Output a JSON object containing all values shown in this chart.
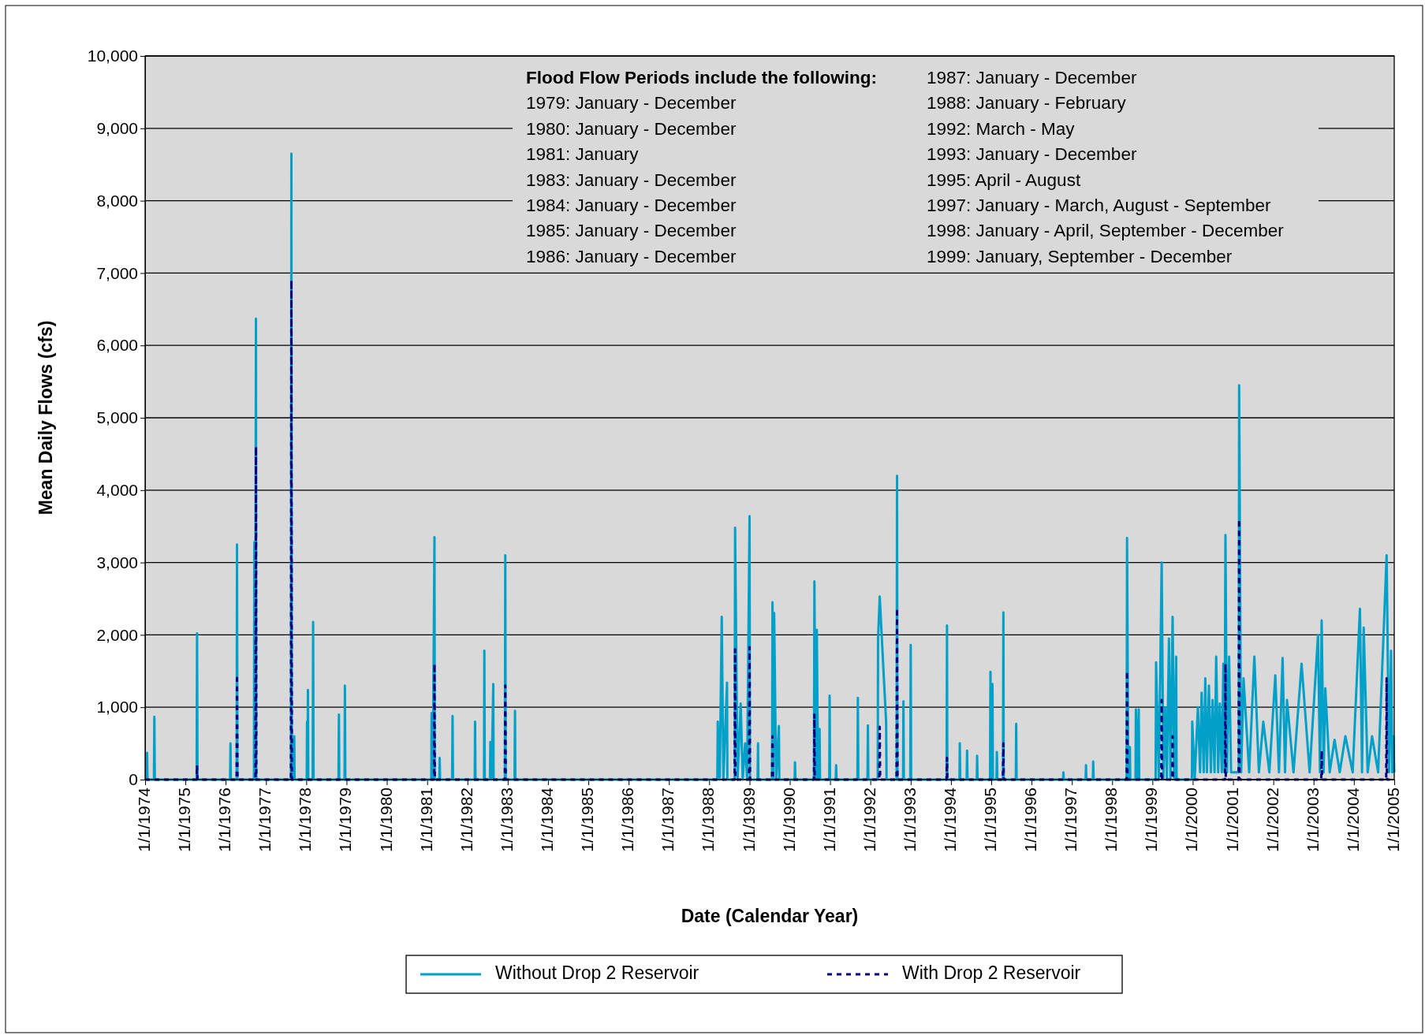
{
  "chart_data": {
    "type": "line",
    "xlabel": "Date (Calendar Year)",
    "ylabel": "Mean Daily Flows (cfs)",
    "xlim": [
      "1974-01-01",
      "2005-01-01"
    ],
    "xticks": [
      {
        "value": "1974-01-01",
        "label": "1/1/1974"
      },
      {
        "value": "1975-01-01",
        "label": "1/1/1975"
      },
      {
        "value": "1976-01-01",
        "label": "1/1/1976"
      },
      {
        "value": "1977-01-01",
        "label": "1/1/1977"
      },
      {
        "value": "1978-01-01",
        "label": "1/1/1978"
      },
      {
        "value": "1979-01-01",
        "label": "1/1/1979"
      },
      {
        "value": "1980-01-01",
        "label": "1/1/1980"
      },
      {
        "value": "1981-01-01",
        "label": "1/1/1981"
      },
      {
        "value": "1982-01-01",
        "label": "1/1/1982"
      },
      {
        "value": "1983-01-01",
        "label": "1/1/1983"
      },
      {
        "value": "1984-01-01",
        "label": "1/1/1984"
      },
      {
        "value": "1985-01-01",
        "label": "1/1/1985"
      },
      {
        "value": "1986-01-01",
        "label": "1/1/1986"
      },
      {
        "value": "1987-01-01",
        "label": "1/1/1987"
      },
      {
        "value": "1988-01-01",
        "label": "1/1/1988"
      },
      {
        "value": "1989-01-01",
        "label": "1/1/1989"
      },
      {
        "value": "1990-01-01",
        "label": "1/1/1990"
      },
      {
        "value": "1991-01-01",
        "label": "1/1/1991"
      },
      {
        "value": "1992-01-01",
        "label": "1/1/1992"
      },
      {
        "value": "1993-01-01",
        "label": "1/1/1993"
      },
      {
        "value": "1994-01-01",
        "label": "1/1/1994"
      },
      {
        "value": "1995-01-01",
        "label": "1/1/1995"
      },
      {
        "value": "1996-01-01",
        "label": "1/1/1996"
      },
      {
        "value": "1997-01-01",
        "label": "1/1/1997"
      },
      {
        "value": "1998-01-01",
        "label": "1/1/1998"
      },
      {
        "value": "1999-01-01",
        "label": "1/1/1999"
      },
      {
        "value": "2000-01-01",
        "label": "1/1/2000"
      },
      {
        "value": "2001-01-01",
        "label": "1/1/2001"
      },
      {
        "value": "2002-01-01",
        "label": "1/1/2002"
      },
      {
        "value": "2003-01-01",
        "label": "1/1/2003"
      },
      {
        "value": "2004-01-01",
        "label": "1/1/2004"
      },
      {
        "value": "2005-01-01",
        "label": "1/1/2005"
      }
    ],
    "ylim": [
      0,
      10000
    ],
    "yticks": [
      0,
      {
        "value": 1000,
        "label": "1,000"
      },
      {
        "value": 2000,
        "label": "2,000"
      },
      {
        "value": 3000,
        "label": "3,000"
      },
      {
        "value": 4000,
        "label": "4,000"
      },
      {
        "value": 5000,
        "label": "5,000"
      },
      {
        "value": 6000,
        "label": "6,000"
      },
      {
        "value": 7000,
        "label": "7,000"
      },
      {
        "value": 8000,
        "label": "8,000"
      },
      {
        "value": 9000,
        "label": "9,000"
      },
      {
        "value": 10000,
        "label": "10,000"
      }
    ],
    "grid": "y",
    "legend": "bottom",
    "annotations": [
      "Flood Flow Periods include the following:",
      "1979: January - December",
      "1980: January - December",
      "1981: January",
      "1983: January - December",
      "1984: January - December",
      "1985: January - December",
      "1986: January - December",
      "1987: January - December",
      "1988: January - February",
      "1992: March - May",
      "1993: January - December",
      "1995: April - August",
      "1997: January - March, August - September",
      "1998: January - April, September - December",
      "1999: January, September - December"
    ],
    "series": [
      {
        "name": "Without Drop 2 Reservoir",
        "color": "#00a0c8",
        "line_style": "solid",
        "x": [
          "1974-01-01",
          "1974-01-16",
          "1974-01-19",
          "1974-01-23",
          "1974-03-22",
          "1974-03-26",
          "1974-03-30",
          "1975-04-13",
          "1975-04-17",
          "1975-04-21",
          "1976-02-10",
          "1976-02-14",
          "1976-02-17",
          "1976-04-10",
          "1976-04-13",
          "1976-04-17",
          "1976-09-14",
          "1976-09-17",
          "1976-09-24",
          "1976-10-02",
          "1976-10-05",
          "1977-08-15",
          "1977-08-19",
          "1977-08-23",
          "1977-09-10",
          "1977-09-14",
          "1977-09-17",
          "1978-01-05",
          "1978-01-08",
          "1978-01-12",
          "1978-01-16",
          "1978-01-19",
          "1978-02-28",
          "1978-03-04",
          "1978-03-08",
          "1978-10-20",
          "1978-10-24",
          "1978-10-27",
          "1978-12-14",
          "1978-12-17",
          "1978-12-21",
          "1981-02-07",
          "1981-02-10",
          "1981-02-21",
          "1981-03-08",
          "1981-03-11",
          "1981-04-21",
          "1981-04-24",
          "1981-04-28",
          "1981-08-15",
          "1981-08-19",
          "1981-08-23",
          "1982-03-08",
          "1982-03-11",
          "1982-03-15",
          "1982-05-31",
          "1982-06-03",
          "1982-06-07",
          "1982-07-24",
          "1982-07-28",
          "1982-08-08",
          "1982-08-23",
          "1982-08-26",
          "1982-12-06",
          "1982-12-10",
          "1982-12-14",
          "1983-03-04",
          "1983-03-08",
          "1983-03-11",
          "1988-03-15",
          "1988-03-19",
          "1988-04-06",
          "1988-04-24",
          "1988-05-09",
          "1988-06-11",
          "1988-06-14",
          "1988-08-19",
          "1988-08-23",
          "1988-09-14",
          "1988-10-13",
          "1988-10-31",
          "1988-11-22",
          "1988-12-10",
          "1989-01-01",
          "1989-01-05",
          "1989-03-15",
          "1989-03-19",
          "1989-03-22",
          "1989-07-24",
          "1989-07-28",
          "1989-08-04",
          "1989-08-12",
          "1989-08-30",
          "1989-09-24",
          "1989-09-28",
          "1990-02-14",
          "1990-02-17",
          "1990-02-21",
          "1990-08-08",
          "1990-08-12",
          "1990-08-23",
          "1990-09-03",
          "1990-09-14",
          "1990-09-28",
          "1990-10-02",
          "1990-12-25",
          "1990-12-28",
          "1991-01-01",
          "1991-02-21",
          "1991-02-25",
          "1991-02-28",
          "1991-09-06",
          "1991-09-10",
          "1991-09-14",
          "1991-12-06",
          "1991-12-10",
          "1991-12-14",
          "1992-03-08",
          "1992-03-11",
          "1992-03-26",
          "1992-05-23",
          "1992-05-27",
          "1992-08-26",
          "1992-08-30",
          "1992-09-03",
          "1992-10-24",
          "1992-10-27",
          "1992-10-31",
          "1992-12-28",
          "1993-01-01",
          "1993-01-05",
          "1993-11-22",
          "1993-11-26",
          "1993-11-29",
          "1994-03-19",
          "1994-03-22",
          "1994-03-26",
          "1994-05-23",
          "1994-05-27",
          "1994-05-31",
          "1994-08-23",
          "1994-08-26",
          "1994-08-30",
          "1994-12-21",
          "1994-12-25",
          "1995-01-01",
          "1995-01-12",
          "1995-01-16",
          "1995-02-17",
          "1995-02-21",
          "1995-02-25",
          "1995-04-17",
          "1995-04-21",
          "1995-04-24",
          "1995-08-12",
          "1995-08-15",
          "1995-08-19",
          "1996-10-13",
          "1996-10-16",
          "1996-10-20",
          "1997-05-05",
          "1997-05-09",
          "1997-05-12",
          "1997-07-10",
          "1997-07-13",
          "1997-07-17",
          "1998-05-12",
          "1998-05-16",
          "1998-05-27",
          "1998-06-11",
          "1998-06-14",
          "1998-08-01",
          "1998-08-04",
          "1998-08-15",
          "1998-08-30",
          "1998-09-03",
          "1999-01-30",
          "1999-02-03",
          "1999-02-28",
          "1999-03-26",
          "1999-04-10",
          "1999-04-28",
          "1999-05-12",
          "1999-05-31",
          "1999-06-14",
          "1999-07-03",
          "1999-07-17",
          "1999-08-04",
          "1999-08-08",
          "1999-12-25",
          "1999-12-28",
          "2000-01-19",
          "2000-02-17",
          "2000-03-08",
          "2000-03-22",
          "2000-04-10",
          "2000-04-24",
          "2000-05-09",
          "2000-05-27",
          "2000-06-14",
          "2000-06-29",
          "2000-07-17",
          "2000-08-01",
          "2000-08-19",
          "2000-09-03",
          "2000-09-21",
          "2000-10-05",
          "2000-10-16",
          "2000-10-24",
          "2000-11-07",
          "2000-11-26",
          "2000-12-14",
          "2001-02-21",
          "2001-02-25",
          "2001-03-15",
          "2001-04-06",
          "2001-05-27",
          "2001-07-13",
          "2001-08-23",
          "2001-10-02",
          "2001-11-26",
          "2002-01-19",
          "2002-02-21",
          "2002-03-26",
          "2002-04-17",
          "2002-05-05",
          "2002-07-03",
          "2002-09-14",
          "2002-11-26",
          "2003-02-10",
          "2003-02-28",
          "2003-03-15",
          "2003-04-02",
          "2003-04-17",
          "2003-05-27",
          "2003-07-10",
          "2003-08-26",
          "2003-10-16",
          "2003-12-21",
          "2004-02-25",
          "2004-03-15",
          "2004-03-30",
          "2004-05-05",
          "2004-06-14",
          "2004-08-08",
          "2004-10-24",
          "2004-11-15",
          "2004-12-03",
          "2004-12-14",
          "2004-12-25",
          "2005-01-01"
        ],
        "values": [
          0,
          0,
          370,
          0,
          0,
          870,
          0,
          0,
          2020,
          0,
          0,
          500,
          0,
          0,
          3250,
          0,
          0,
          3280,
          0,
          6370,
          0,
          0,
          8650,
          0,
          0,
          600,
          0,
          0,
          800,
          0,
          1240,
          0,
          0,
          2180,
          0,
          0,
          900,
          0,
          0,
          1300,
          0,
          0,
          920,
          0,
          3350,
          0,
          0,
          300,
          0,
          0,
          880,
          0,
          0,
          800,
          0,
          0,
          1780,
          0,
          0,
          520,
          0,
          1320,
          0,
          0,
          3100,
          0,
          0,
          950,
          0,
          0,
          800,
          0,
          2250,
          0,
          1340,
          0,
          0,
          3480,
          0,
          1050,
          0,
          500,
          0,
          3640,
          0,
          0,
          500,
          0,
          0,
          2450,
          0,
          2300,
          0,
          740,
          0,
          0,
          240,
          0,
          0,
          2740,
          0,
          2070,
          0,
          700,
          0,
          0,
          1160,
          0,
          0,
          200,
          0,
          0,
          1130,
          0,
          0,
          750,
          0,
          0,
          1950,
          2530,
          800,
          0,
          0,
          4200,
          0,
          0,
          1080,
          0,
          0,
          1860,
          0,
          0,
          2130,
          0,
          0,
          500,
          0,
          0,
          400,
          0,
          0,
          330,
          0,
          0,
          1490,
          0,
          1320,
          0,
          0,
          380,
          0,
          0,
          2310,
          0,
          0,
          770,
          0,
          0,
          100,
          0,
          0,
          200,
          0,
          0,
          250,
          0,
          0,
          3340,
          0,
          450,
          0,
          0,
          970,
          0,
          970,
          0,
          0,
          1620,
          0,
          3000,
          0,
          1000,
          0,
          1950,
          0,
          2250,
          0,
          1700,
          0,
          0,
          800,
          0,
          1000,
          100,
          1200,
          100,
          1400,
          100,
          1300,
          100,
          1100,
          100,
          1700,
          100,
          1050,
          100,
          1600,
          100,
          3380,
          100,
          1700,
          100,
          100,
          5450,
          100,
          1400,
          100,
          1700,
          100,
          800,
          100,
          1440,
          100,
          1680,
          100,
          1100,
          100,
          1600,
          100,
          2000,
          100,
          2200,
          100,
          1260,
          100,
          550,
          100,
          600,
          100,
          2360,
          100,
          2100,
          100,
          600,
          100,
          3100,
          100,
          1780,
          100,
          600,
          100
        ]
      },
      {
        "name": "With Drop 2 Reservoir",
        "color": "#000080",
        "line_style": "dashed",
        "x": [
          "1974-01-01",
          "1975-04-13",
          "1975-04-17",
          "1975-04-21",
          "1976-04-10",
          "1976-04-13",
          "1976-04-17",
          "1976-09-28",
          "1976-10-02",
          "1976-10-05",
          "1977-08-15",
          "1977-08-19",
          "1977-08-23",
          "1981-03-04",
          "1981-03-08",
          "1981-03-11",
          "1982-12-06",
          "1982-12-10",
          "1982-12-14",
          "1988-08-19",
          "1988-08-23",
          "1988-08-26",
          "1988-12-28",
          "1989-01-01",
          "1989-01-05",
          "1989-07-24",
          "1989-07-28",
          "1989-08-01",
          "1990-08-08",
          "1990-08-12",
          "1990-08-15",
          "1992-03-22",
          "1992-03-26",
          "1992-03-30",
          "1992-08-26",
          "1992-08-30",
          "1992-09-03",
          "1993-11-22",
          "1993-11-26",
          "1993-11-29",
          "1995-04-17",
          "1995-04-21",
          "1995-04-24",
          "1998-05-12",
          "1998-05-16",
          "1998-05-20",
          "1999-03-22",
          "1999-03-26",
          "1999-03-30",
          "1999-06-29",
          "1999-07-03",
          "1999-07-06",
          "2000-10-20",
          "2000-10-24",
          "2000-10-27",
          "2001-02-21",
          "2001-02-25",
          "2001-02-28",
          "2003-03-11",
          "2003-03-15",
          "2003-03-19",
          "2004-10-20",
          "2004-10-24",
          "2004-10-27",
          "2005-01-01"
        ],
        "values": [
          0,
          0,
          200,
          0,
          0,
          1450,
          0,
          0,
          4600,
          0,
          0,
          6900,
          0,
          0,
          1600,
          0,
          0,
          1300,
          0,
          0,
          1800,
          0,
          0,
          1830,
          0,
          0,
          600,
          0,
          0,
          900,
          0,
          0,
          730,
          0,
          0,
          2370,
          0,
          0,
          300,
          0,
          0,
          500,
          0,
          0,
          1500,
          0,
          0,
          1100,
          0,
          0,
          600,
          0,
          0,
          1600,
          0,
          0,
          3600,
          0,
          0,
          400,
          0,
          0,
          1400,
          0,
          0
        ]
      }
    ]
  }
}
